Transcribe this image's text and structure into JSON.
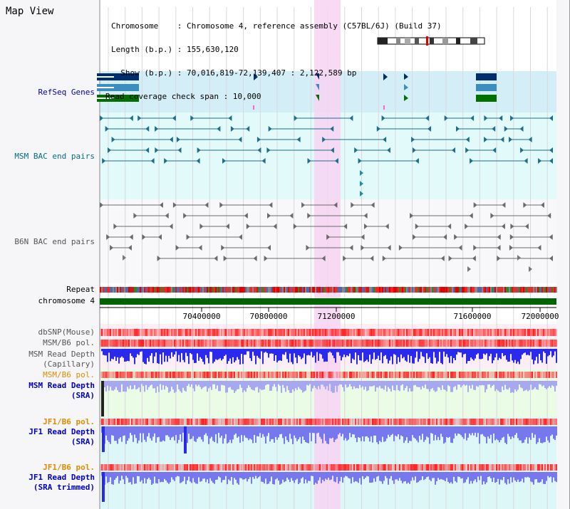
{
  "page": {
    "title": "Map View"
  },
  "info": {
    "chromosome": "Chromosome    : Chromosome 4, reference assembly (C57BL/6J) (Build 37)",
    "length": "Length (b.p.) : 155,630,120",
    "show": "  Show (b.p.) : 70,016,819-72,139,407 : 2,122,589 bp",
    "coverage": "Read coverage check span : 10,000"
  },
  "tracks": {
    "refseq": "RefSeq Genes",
    "msm_bac": "MSM BAC end pairs",
    "b6n_bac": "B6N BAC end pairs",
    "repeat": "Repeat",
    "chromosome": "chromosome 4",
    "dbsnp": "dbSNP(Mouse)",
    "msm_b6_pol_1": "MSM/B6 pol.",
    "msm_depth_cap_1": "MSM Read Depth",
    "msm_depth_cap_2": "(Capillary)",
    "msm_b6_pol_2": "MSM/B6 pol.",
    "msm_depth_sra_1": "MSM Read Depth",
    "msm_depth_sra_2": "(SRA)",
    "jf1_b6_pol_1": "JF1/B6 pol.",
    "jf1_depth_sra_1": "JF1 Read Depth",
    "jf1_depth_sra_2": "(SRA)",
    "jf1_b6_pol_2": "JF1/B6 pol.",
    "jf1_depth_trim_1": "JF1 Read Depth",
    "jf1_depth_trim_2": "(SRA trimmed)"
  },
  "axis": {
    "start_bp": 70016819,
    "end_bp": 72139407,
    "ticks": [
      "70400000",
      "70800000",
      "71200000",
      "71600000",
      "72000000"
    ]
  },
  "colors": {
    "refseq_label": "#0000aa",
    "msm_label": "#006f80",
    "b6n_label": "#555555",
    "orange_label": "#e08a00",
    "blue_label": "#0000c0",
    "highlight": "#f7d4f2",
    "chromosome_bar": "#006400"
  }
}
